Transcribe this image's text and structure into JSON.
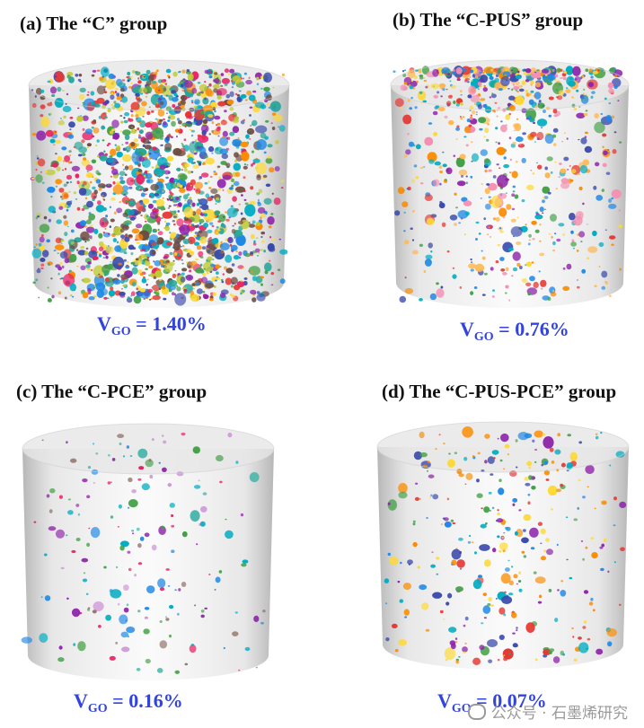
{
  "panels": [
    {
      "title": "(a) The “C” group",
      "vgo_prefix": "V",
      "vgo_sub": "GO",
      "vgo_value": " = 1.40%",
      "density": 1.0,
      "skew": "uniform",
      "palette": [
        "#e53935",
        "#43a047",
        "#1e88e5",
        "#fdd835",
        "#8e24aa",
        "#fb8c00",
        "#00acc1",
        "#e91e63",
        "#6d4c41",
        "#3949ab",
        "#c0ca33",
        "#26a69a"
      ]
    },
    {
      "title": "(b) The “C-PUS” group",
      "vgo_prefix": "V",
      "vgo_sub": "GO",
      "vgo_value": " = 0.76%",
      "density": 0.45,
      "skew": "top",
      "palette": [
        "#1e88e5",
        "#43a047",
        "#fdd835",
        "#e53935",
        "#8e24aa",
        "#fb8c00",
        "#00acc1",
        "#f48fb1",
        "#3949ab",
        "#ffb74d"
      ]
    },
    {
      "title": "(c) The “C-PCE” group",
      "vgo_prefix": "V",
      "vgo_sub": "GO",
      "vgo_value": " = 0.16%",
      "density": 0.1,
      "skew": "uniform",
      "palette": [
        "#8e24aa",
        "#43a047",
        "#1e88e5",
        "#e91e63",
        "#00acc1",
        "#ce93d8",
        "#8d6e63",
        "#4db6ac"
      ]
    },
    {
      "title": "(d) The “C-PUS-PCE” group",
      "vgo_prefix": "V",
      "vgo_sub": "GO",
      "vgo_value": " = 0.07%",
      "density": 0.18,
      "skew": "uniform",
      "palette": [
        "#1e88e5",
        "#43a047",
        "#e53935",
        "#fdd835",
        "#8e24aa",
        "#00acc1",
        "#fb8c00",
        "#3949ab"
      ]
    }
  ],
  "watermark": {
    "text": "公众号 · 石墨烯研究",
    "icon": "wechat-icon"
  }
}
